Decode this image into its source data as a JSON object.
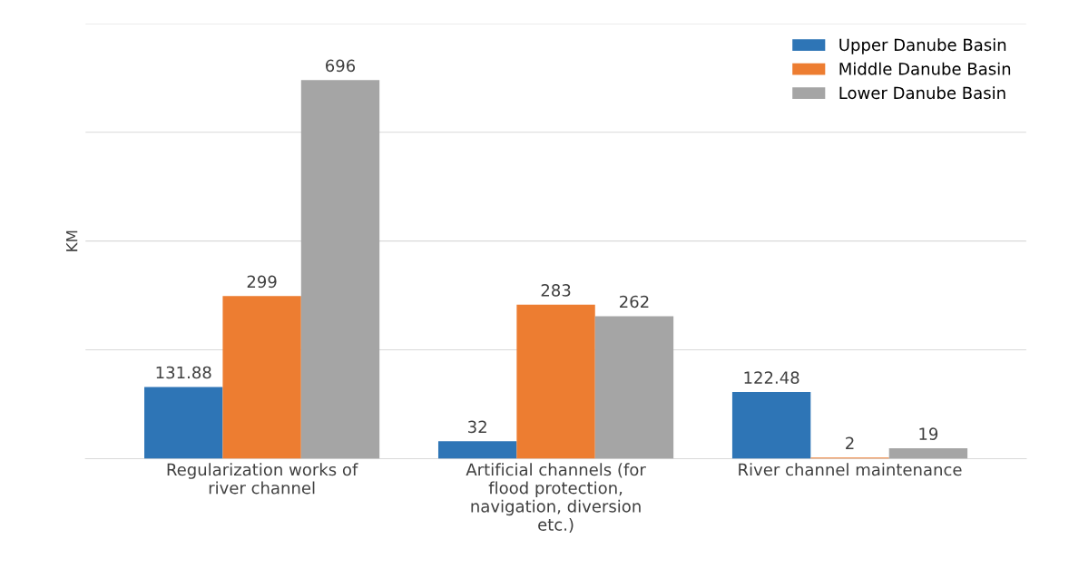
{
  "chart_data": {
    "type": "bar",
    "ylabel": "KM",
    "categories": [
      "Regularization works of river channel",
      "Artificial channels (for flood protection, navigation, diversion etc.)",
      "River channel maintenance"
    ],
    "series": [
      {
        "name": "Upper Danube Basin",
        "color": "#2e75b6",
        "values": [
          131.88,
          32,
          122.48
        ]
      },
      {
        "name": "Middle Danube Basin",
        "color": "#ed7d31",
        "values": [
          299,
          283,
          2
        ]
      },
      {
        "name": "Lower Danube Basin",
        "color": "#a5a5a5",
        "values": [
          696,
          262,
          19
        ]
      }
    ],
    "ylim": [
      0,
      800
    ],
    "yticks": [
      {
        "value": 0,
        "label": null
      },
      {
        "value": 200,
        "label": null
      },
      {
        "value": 400,
        "label": null
      },
      {
        "value": 600,
        "label": null
      },
      {
        "value": 800,
        "label": null
      }
    ],
    "tick_labels": "x",
    "grid": "y",
    "legend": "top right",
    "data_labels": true
  }
}
